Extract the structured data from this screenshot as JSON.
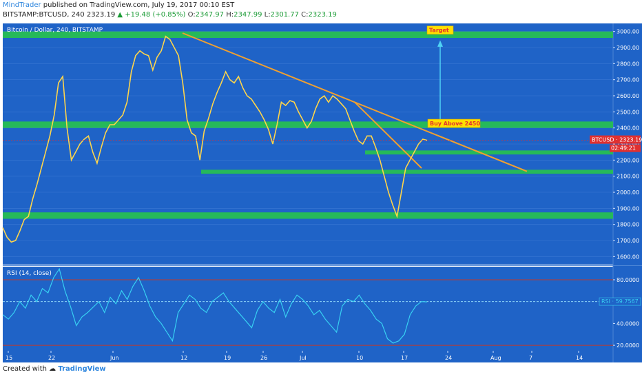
{
  "header": {
    "author": "MindTrader",
    "published_text": "published on TradingView.com, July 19, 2017 00:10 EST",
    "symbol": "BITSTAMP:BTCUSD, 240",
    "last": "2323.19",
    "change": "▲ +19.48 (+0.85%)",
    "o_label": "O:",
    "o_value": "2347.97",
    "h_label": "H:",
    "h_value": "2347.99",
    "l_label": "L:",
    "l_value": "2301.77",
    "c_label": "C:",
    "c_value": "2323.19"
  },
  "footer": {
    "created_with": "Created with",
    "brand": "TradingView"
  },
  "colors": {
    "background": "#1f63c7",
    "zone": "#27c24c",
    "trendline": "#f0a030",
    "rsi_line": "#37d0f2",
    "rsi_band": "#c0392b",
    "price_tag": "#e03030",
    "annotation_bg": "#ffe000",
    "annotation_text": "#e03030"
  },
  "chart_data": [
    {
      "type": "line",
      "pane": "price",
      "title": "Bitcoin / Dollar, 240, BITSTAMP",
      "ylim": [
        1550,
        3050
      ],
      "yticks": [
        1600,
        1700,
        1800,
        1900,
        2000,
        2100,
        2200,
        2300,
        2400,
        2500,
        2600,
        2700,
        2800,
        2900,
        3000
      ],
      "ytick_labels": [
        "1600.00",
        "1700.00",
        "1800.00",
        "1900.00",
        "2000.00",
        "2100.00",
        "2200.00",
        "2300.00",
        "2400.00",
        "2500.00",
        "2600.00",
        "2700.00",
        "2800.00",
        "2900.00",
        "3000.00"
      ],
      "x_labels": [
        "15",
        "22",
        "Jun",
        "12",
        "19",
        "26",
        "Jul",
        "10",
        "17",
        "24",
        "Aug",
        "7",
        "14"
      ],
      "series": [
        {
          "values": [
            1780,
            1720,
            1690,
            1700,
            1760,
            1830,
            1850,
            1960,
            2050,
            2150,
            2250,
            2350,
            2480,
            2680,
            2720,
            2400,
            2200,
            2250,
            2300,
            2330,
            2350,
            2250,
            2180,
            2280,
            2370,
            2420,
            2420,
            2450,
            2480,
            2560,
            2750,
            2850,
            2880,
            2860,
            2850,
            2760,
            2840,
            2880,
            2970,
            2950,
            2900,
            2850,
            2680,
            2450,
            2370,
            2350,
            2200,
            2380,
            2460,
            2550,
            2620,
            2680,
            2750,
            2700,
            2680,
            2720,
            2650,
            2600,
            2580,
            2540,
            2500,
            2450,
            2390,
            2300,
            2420,
            2560,
            2540,
            2570,
            2560,
            2500,
            2450,
            2400,
            2440,
            2520,
            2580,
            2600,
            2560,
            2600,
            2580,
            2550,
            2520,
            2450,
            2380,
            2320,
            2300,
            2350,
            2350,
            2280,
            2200,
            2100,
            2000,
            1920,
            1850,
            2000,
            2150,
            2200,
            2250,
            2300,
            2330,
            2323.19
          ]
        }
      ],
      "zones": [
        {
          "low": 2960,
          "high": 3000
        },
        {
          "low": 2400,
          "high": 2440
        },
        {
          "low": 2235,
          "high": 2260
        },
        {
          "low": 2115,
          "high": 2140
        },
        {
          "low": 1835,
          "high": 1875
        }
      ],
      "annotations": [
        {
          "text": "Target",
          "price": 3000
        },
        {
          "text": "Buy Above 2450",
          "price": 2420
        }
      ],
      "last_price_tag": {
        "label": "BTCUSD · 2323.19",
        "sub": "02:49:21",
        "value": 2323.19
      }
    },
    {
      "type": "line",
      "pane": "rsi",
      "title": "RSI (14, close)",
      "ylim": [
        15,
        92
      ],
      "yticks": [
        20,
        40,
        60,
        80
      ],
      "ytick_labels": [
        "20.0000",
        "40.0000",
        "60.0000",
        "80.0000"
      ],
      "bands": [
        80,
        20,
        60
      ],
      "series": [
        {
          "values": [
            48,
            44,
            50,
            60,
            54,
            66,
            60,
            72,
            68,
            82,
            90,
            70,
            55,
            38,
            46,
            50,
            55,
            60,
            50,
            64,
            58,
            70,
            62,
            74,
            82,
            70,
            56,
            46,
            40,
            32,
            24,
            50,
            58,
            66,
            62,
            54,
            50,
            60,
            64,
            68,
            60,
            54,
            48,
            42,
            36,
            52,
            60,
            54,
            50,
            62,
            46,
            58,
            66,
            62,
            56,
            48,
            52,
            44,
            38,
            32,
            56,
            62,
            60,
            66,
            58,
            52,
            44,
            40,
            26,
            22,
            24,
            30,
            48,
            56,
            60,
            59.76
          ]
        }
      ],
      "last_value_tag": {
        "label": "RSI · 59.7567",
        "value": 59.76
      }
    }
  ]
}
